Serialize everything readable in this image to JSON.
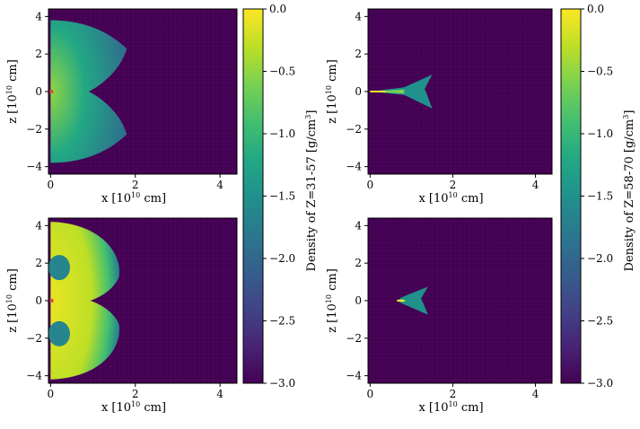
{
  "chart_data": {
    "type": "heatmap",
    "colormap": "viridis",
    "panels": [
      {
        "id": "top-left",
        "xlabel": "x [10^10 cm]",
        "ylabel": "z [10^10 cm]",
        "xlim": [
          -0.05,
          4.4
        ],
        "ylim": [
          -4.4,
          4.4
        ],
        "xticks": [
          0,
          2,
          4
        ],
        "yticks": [
          -4,
          -2,
          0,
          2,
          4
        ],
        "xtick_labels": [
          "0",
          "2",
          "4"
        ],
        "ytick_labels": [
          "−4",
          "−2",
          "0",
          "2",
          "4"
        ],
        "colorbar": "left",
        "shape": "wide-hourglass",
        "extent_x": 1.8,
        "extent_z": 3.8,
        "peak_log_density": -0.5
      },
      {
        "id": "top-right",
        "xlabel": "x [10^10 cm]",
        "ylabel": "z [10^10 cm]",
        "xlim": [
          -0.05,
          4.4
        ],
        "ylim": [
          -4.4,
          4.4
        ],
        "xticks": [
          0,
          2,
          4
        ],
        "yticks": [
          -4,
          -2,
          0,
          2,
          4
        ],
        "xtick_labels": [
          "0",
          "2",
          "4"
        ],
        "ytick_labels": [
          "−4",
          "−2",
          "0",
          "2",
          "4"
        ],
        "colorbar": "right",
        "shape": "narrow-jet",
        "extent_x": 1.5,
        "extent_z": 0.9,
        "peak_log_density": 0.0
      },
      {
        "id": "bottom-left",
        "xlabel": "x [10^10 cm]",
        "ylabel": "z [10^10 cm]",
        "xlim": [
          -0.05,
          4.4
        ],
        "ylim": [
          -4.4,
          4.4
        ],
        "xticks": [
          0,
          2,
          4
        ],
        "yticks": [
          -4,
          -2,
          0,
          2,
          4
        ],
        "xtick_labels": [
          "0",
          "2",
          "4"
        ],
        "ytick_labels": [
          "−4",
          "−2",
          "0",
          "2",
          "4"
        ],
        "colorbar": "left",
        "shape": "bright-double-lobe",
        "extent_x": 1.7,
        "extent_z": 4.2,
        "peak_log_density": 0.0
      },
      {
        "id": "bottom-right",
        "xlabel": "x [10^10 cm]",
        "ylabel": "z [10^10 cm]",
        "xlim": [
          -0.05,
          4.4
        ],
        "ylim": [
          -4.4,
          4.4
        ],
        "xticks": [
          0,
          2,
          4
        ],
        "yticks": [
          -4,
          -2,
          0,
          2,
          4
        ],
        "xtick_labels": [
          "0",
          "2",
          "4"
        ],
        "ytick_labels": [
          "−4",
          "−2",
          "0",
          "2",
          "4"
        ],
        "colorbar": "right",
        "shape": "narrow-jet-offset",
        "extent_x": 1.4,
        "extent_z": 0.75,
        "peak_log_density": 0.0
      }
    ],
    "colorbars": [
      {
        "id": "left",
        "label": "Density of Z=31-57 [g/cm^3]",
        "range": [
          -3.0,
          0.0
        ],
        "ticks": [
          0.0,
          -0.5,
          -1.0,
          -1.5,
          -2.0,
          -2.5,
          -3.0
        ],
        "tick_labels": [
          "0.0",
          "−0.5",
          "−1.0",
          "−1.5",
          "−2.0",
          "−2.5",
          "−3.0"
        ]
      },
      {
        "id": "right",
        "label": "Density of Z=58-70 [g/cm^3]",
        "range": [
          -3.0,
          0.0
        ],
        "ticks": [
          0.0,
          -0.5,
          -1.0,
          -1.5,
          -2.0,
          -2.5,
          -3.0
        ],
        "tick_labels": [
          "0.0",
          "−0.5",
          "−1.0",
          "−1.5",
          "−2.0",
          "−2.5",
          "−3.0"
        ]
      }
    ],
    "labels": {
      "x_base": "x [10",
      "x_exp": "10",
      "x_unit": " cm]",
      "z_base": "z [10",
      "z_exp": "10",
      "z_unit": " cm]",
      "cb_left_prefix": "Density of Z=31-57 [g/cm",
      "cb_right_prefix": "Density of Z=58-70 [g/cm",
      "cb_exp": "3",
      "cb_suffix": "]"
    }
  }
}
